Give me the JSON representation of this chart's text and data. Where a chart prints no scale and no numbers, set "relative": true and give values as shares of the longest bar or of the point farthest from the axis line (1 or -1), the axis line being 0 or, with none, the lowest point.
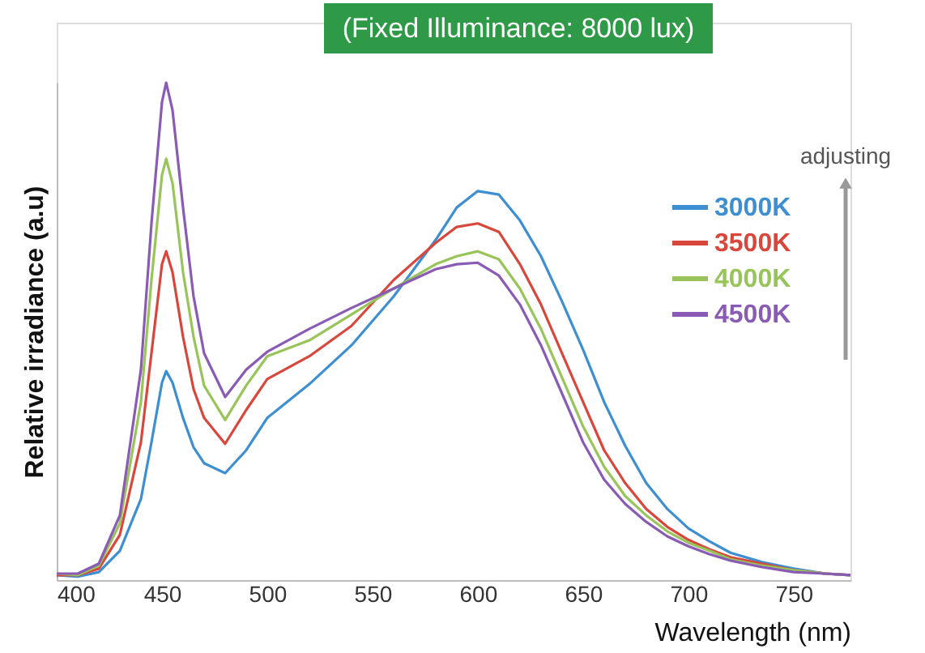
{
  "chart_data": {
    "type": "line",
    "title": "(Fixed Illuminance: 8000 lux)",
    "xlabel": "Wavelength (nm)",
    "ylabel": "Relative irradiance (a.u)",
    "relative": true,
    "legend": "right",
    "grid": false,
    "x": [
      400,
      410,
      420,
      430,
      440,
      445,
      450,
      452,
      455,
      460,
      465,
      470,
      480,
      490,
      500,
      520,
      540,
      560,
      580,
      590,
      600,
      610,
      620,
      630,
      640,
      650,
      660,
      670,
      680,
      690,
      700,
      710,
      720,
      735,
      750,
      765,
      777
    ],
    "xlim": [
      400,
      777
    ],
    "xticks": [
      400,
      450,
      500,
      550,
      600,
      650,
      700,
      750
    ],
    "annotations": [
      "adjusting"
    ],
    "series": [
      {
        "name": "3000K",
        "color": "#3d8fd1",
        "values": [
          0.01,
          0.007,
          0.016,
          0.059,
          0.163,
          0.277,
          0.397,
          0.42,
          0.397,
          0.326,
          0.267,
          0.235,
          0.215,
          0.261,
          0.326,
          0.394,
          0.472,
          0.57,
          0.684,
          0.749,
          0.782,
          0.775,
          0.723,
          0.651,
          0.56,
          0.463,
          0.358,
          0.27,
          0.195,
          0.143,
          0.104,
          0.078,
          0.055,
          0.036,
          0.023,
          0.013,
          0.01
        ]
      },
      {
        "name": "3500K",
        "color": "#d9473c",
        "values": [
          0.01,
          0.01,
          0.023,
          0.091,
          0.277,
          0.456,
          0.635,
          0.661,
          0.619,
          0.489,
          0.384,
          0.326,
          0.274,
          0.342,
          0.404,
          0.45,
          0.511,
          0.603,
          0.678,
          0.71,
          0.717,
          0.7,
          0.635,
          0.554,
          0.456,
          0.358,
          0.261,
          0.195,
          0.143,
          0.107,
          0.081,
          0.062,
          0.046,
          0.033,
          0.02,
          0.013,
          0.01
        ]
      },
      {
        "name": "4000K",
        "color": "#98c45a",
        "values": [
          0.013,
          0.01,
          0.029,
          0.114,
          0.358,
          0.603,
          0.814,
          0.847,
          0.798,
          0.619,
          0.489,
          0.391,
          0.322,
          0.391,
          0.45,
          0.482,
          0.534,
          0.586,
          0.635,
          0.651,
          0.661,
          0.645,
          0.586,
          0.505,
          0.407,
          0.309,
          0.228,
          0.169,
          0.13,
          0.098,
          0.075,
          0.059,
          0.042,
          0.029,
          0.02,
          0.013,
          0.01
        ]
      },
      {
        "name": "4500K",
        "color": "#8a5bb5",
        "values": [
          0.013,
          0.013,
          0.033,
          0.13,
          0.423,
          0.717,
          0.961,
          1,
          0.945,
          0.749,
          0.57,
          0.456,
          0.368,
          0.423,
          0.459,
          0.505,
          0.547,
          0.586,
          0.625,
          0.635,
          0.638,
          0.612,
          0.554,
          0.472,
          0.375,
          0.277,
          0.202,
          0.153,
          0.117,
          0.088,
          0.068,
          0.052,
          0.039,
          0.026,
          0.016,
          0.013,
          0.01
        ]
      }
    ]
  }
}
